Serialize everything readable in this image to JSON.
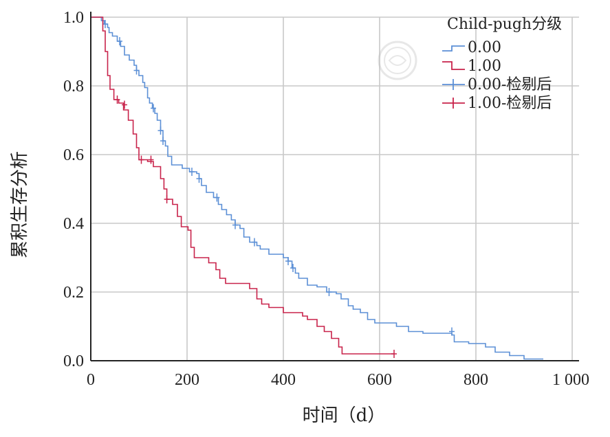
{
  "chart_data": {
    "type": "line",
    "step": true,
    "xlabel": "时间（d）",
    "ylabel": "累积生存分析",
    "xlim": [
      0,
      1000
    ],
    "ylim": [
      0,
      1
    ],
    "xticks": [
      "0",
      "200",
      "400",
      "600",
      "800",
      "1 000"
    ],
    "yticks": [
      "0.0",
      "0.2",
      "0.4",
      "0.6",
      "0.8",
      "1.0"
    ],
    "grid": true,
    "legend_title": "Child-pugh分级",
    "legend_position": "top-right",
    "legend": [
      {
        "label": "0.00",
        "kind": "line",
        "color": "#5b8fd6"
      },
      {
        "label": "1.00",
        "kind": "line",
        "color": "#c8224a"
      },
      {
        "label": "0.00-检剔后",
        "kind": "censor",
        "color": "#5b8fd6"
      },
      {
        "label": "1.00-检剔后",
        "kind": "censor",
        "color": "#c8224a"
      }
    ],
    "series": [
      {
        "name": "0.00",
        "color": "#5b8fd6",
        "points": [
          [
            0,
            1.0
          ],
          [
            20,
            1.0
          ],
          [
            22,
            0.99
          ],
          [
            28,
            0.98
          ],
          [
            35,
            0.97
          ],
          [
            38,
            0.955
          ],
          [
            45,
            0.945
          ],
          [
            55,
            0.93
          ],
          [
            62,
            0.915
          ],
          [
            70,
            0.89
          ],
          [
            80,
            0.875
          ],
          [
            90,
            0.86
          ],
          [
            95,
            0.845
          ],
          [
            100,
            0.83
          ],
          [
            108,
            0.81
          ],
          [
            112,
            0.795
          ],
          [
            118,
            0.765
          ],
          [
            122,
            0.75
          ],
          [
            128,
            0.735
          ],
          [
            133,
            0.72
          ],
          [
            138,
            0.7
          ],
          [
            145,
            0.67
          ],
          [
            150,
            0.64
          ],
          [
            155,
            0.625
          ],
          [
            160,
            0.595
          ],
          [
            168,
            0.57
          ],
          [
            190,
            0.56
          ],
          [
            205,
            0.55
          ],
          [
            220,
            0.545
          ],
          [
            225,
            0.53
          ],
          [
            230,
            0.51
          ],
          [
            240,
            0.49
          ],
          [
            255,
            0.475
          ],
          [
            265,
            0.455
          ],
          [
            272,
            0.44
          ],
          [
            282,
            0.425
          ],
          [
            292,
            0.41
          ],
          [
            300,
            0.395
          ],
          [
            310,
            0.385
          ],
          [
            318,
            0.36
          ],
          [
            330,
            0.345
          ],
          [
            345,
            0.335
          ],
          [
            352,
            0.325
          ],
          [
            370,
            0.31
          ],
          [
            400,
            0.3
          ],
          [
            410,
            0.29
          ],
          [
            418,
            0.27
          ],
          [
            425,
            0.255
          ],
          [
            432,
            0.24
          ],
          [
            450,
            0.22
          ],
          [
            470,
            0.215
          ],
          [
            490,
            0.2
          ],
          [
            510,
            0.195
          ],
          [
            520,
            0.18
          ],
          [
            535,
            0.16
          ],
          [
            545,
            0.15
          ],
          [
            560,
            0.14
          ],
          [
            575,
            0.12
          ],
          [
            590,
            0.11
          ],
          [
            635,
            0.1
          ],
          [
            660,
            0.085
          ],
          [
            690,
            0.08
          ],
          [
            710,
            0.08
          ],
          [
            750,
            0.075
          ],
          [
            755,
            0.055
          ],
          [
            785,
            0.05
          ],
          [
            820,
            0.04
          ],
          [
            840,
            0.025
          ],
          [
            870,
            0.015
          ],
          [
            900,
            0.005
          ],
          [
            940,
            0.005
          ]
        ],
        "censored": [
          [
            30,
            0.98
          ],
          [
            60,
            0.93
          ],
          [
            95,
            0.845
          ],
          [
            130,
            0.735
          ],
          [
            145,
            0.67
          ],
          [
            150,
            0.64
          ],
          [
            210,
            0.55
          ],
          [
            225,
            0.53
          ],
          [
            262,
            0.475
          ],
          [
            300,
            0.395
          ],
          [
            340,
            0.345
          ],
          [
            410,
            0.29
          ],
          [
            420,
            0.27
          ],
          [
            495,
            0.2
          ],
          [
            750,
            0.085
          ]
        ]
      },
      {
        "name": "1.00",
        "color": "#c8224a",
        "points": [
          [
            0,
            1.0
          ],
          [
            18,
            1.0
          ],
          [
            25,
            0.96
          ],
          [
            30,
            0.9
          ],
          [
            35,
            0.83
          ],
          [
            40,
            0.79
          ],
          [
            48,
            0.76
          ],
          [
            58,
            0.75
          ],
          [
            68,
            0.73
          ],
          [
            78,
            0.7
          ],
          [
            88,
            0.66
          ],
          [
            95,
            0.62
          ],
          [
            100,
            0.585
          ],
          [
            118,
            0.58
          ],
          [
            130,
            0.565
          ],
          [
            145,
            0.53
          ],
          [
            152,
            0.5
          ],
          [
            158,
            0.47
          ],
          [
            170,
            0.455
          ],
          [
            180,
            0.42
          ],
          [
            188,
            0.39
          ],
          [
            202,
            0.38
          ],
          [
            208,
            0.33
          ],
          [
            215,
            0.3
          ],
          [
            245,
            0.285
          ],
          [
            260,
            0.265
          ],
          [
            268,
            0.24
          ],
          [
            280,
            0.225
          ],
          [
            330,
            0.21
          ],
          [
            345,
            0.18
          ],
          [
            355,
            0.165
          ],
          [
            370,
            0.155
          ],
          [
            400,
            0.14
          ],
          [
            440,
            0.13
          ],
          [
            450,
            0.12
          ],
          [
            470,
            0.1
          ],
          [
            485,
            0.085
          ],
          [
            500,
            0.065
          ],
          [
            515,
            0.04
          ],
          [
            522,
            0.02
          ],
          [
            630,
            0.02
          ]
        ],
        "censored": [
          [
            55,
            0.76
          ],
          [
            70,
            0.745
          ],
          [
            105,
            0.585
          ],
          [
            125,
            0.585
          ],
          [
            158,
            0.47
          ],
          [
            630,
            0.02
          ]
        ]
      }
    ]
  }
}
